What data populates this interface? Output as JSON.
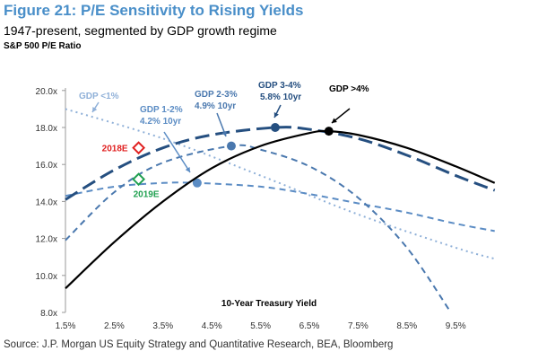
{
  "title": "Figure 21: P/E Sensitivity to Rising Yields",
  "subtitle": "1947-present, segmented by GDP growth regime",
  "source": "Source: J.P. Morgan US Equity Strategy and Quantitative Research, BEA, Bloomberg",
  "chart_data": {
    "type": "line",
    "title": "Figure 21: P/E Sensitivity to Rising Yields",
    "ylabel": "S&P 500 P/E Ratio",
    "xlabel": "10-Year Treasury Yield",
    "xlim": [
      1.5,
      10.3
    ],
    "ylim": [
      8.0,
      20.0
    ],
    "x_ticks": [
      "1.5%",
      "2.5%",
      "3.5%",
      "4.5%",
      "5.5%",
      "6.5%",
      "7.5%",
      "8.5%",
      "9.5%"
    ],
    "y_ticks": [
      "8.0x",
      "10.0x",
      "12.0x",
      "14.0x",
      "16.0x",
      "18.0x",
      "20.0x"
    ],
    "grid": false,
    "series": [
      {
        "name": "GDP <1%",
        "style": "dotted",
        "color": "#8fb0d8",
        "points": [
          [
            1.5,
            19.0
          ],
          [
            3.5,
            17.4
          ],
          [
            5.5,
            15.4
          ],
          [
            7.5,
            13.3
          ],
          [
            9.5,
            11.5
          ],
          [
            10.3,
            10.9
          ]
        ]
      },
      {
        "name": "GDP 1-2%",
        "style": "dashed",
        "color": "#5b8cc4",
        "points": [
          [
            1.5,
            14.3
          ],
          [
            2.5,
            14.8
          ],
          [
            3.5,
            15.0
          ],
          [
            4.2,
            15.0
          ],
          [
            5.5,
            14.8
          ],
          [
            6.5,
            14.4
          ],
          [
            7.5,
            13.9
          ],
          [
            8.5,
            13.4
          ],
          [
            9.5,
            12.8
          ],
          [
            10.3,
            12.4
          ]
        ],
        "marker": {
          "x": 4.2,
          "y": 15.0,
          "label": "4.2% 10yr"
        }
      },
      {
        "name": "GDP 2-3%",
        "style": "dashed",
        "color": "#4a78ae",
        "points": [
          [
            1.5,
            11.9
          ],
          [
            2.5,
            14.5
          ],
          [
            3.5,
            16.1
          ],
          [
            4.9,
            17.0
          ],
          [
            5.5,
            16.8
          ],
          [
            6.5,
            15.9
          ],
          [
            7.5,
            14.2
          ],
          [
            8.5,
            11.5
          ],
          [
            9.4,
            8.0
          ]
        ],
        "marker": {
          "x": 4.9,
          "y": 17.0,
          "label": "4.9% 10yr"
        }
      },
      {
        "name": "GDP 3-4%",
        "style": "longdash",
        "color": "#254f80",
        "points": [
          [
            1.5,
            14.1
          ],
          [
            2.5,
            15.7
          ],
          [
            3.5,
            16.9
          ],
          [
            4.5,
            17.6
          ],
          [
            5.8,
            18.0
          ],
          [
            6.5,
            17.9
          ],
          [
            7.5,
            17.4
          ],
          [
            8.5,
            16.5
          ],
          [
            9.5,
            15.4
          ],
          [
            10.3,
            14.6
          ]
        ],
        "marker": {
          "x": 5.8,
          "y": 18.0,
          "label": "5.8% 10yr"
        }
      },
      {
        "name": "GDP >4%",
        "style": "solid",
        "color": "#000000",
        "points": [
          [
            1.5,
            9.3
          ],
          [
            2.5,
            11.8
          ],
          [
            3.5,
            14.0
          ],
          [
            4.5,
            15.8
          ],
          [
            5.5,
            17.0
          ],
          [
            6.5,
            17.7
          ],
          [
            6.9,
            17.8
          ],
          [
            7.5,
            17.6
          ],
          [
            8.5,
            16.9
          ],
          [
            9.5,
            15.9
          ],
          [
            10.3,
            15.0
          ]
        ],
        "marker": {
          "x": 6.9,
          "y": 17.8
        }
      }
    ],
    "points": [
      {
        "name": "2018E",
        "x": 3.0,
        "y": 16.9,
        "color": "#e02020"
      },
      {
        "name": "2019E",
        "x": 3.0,
        "y": 15.2,
        "color": "#20a050"
      }
    ]
  }
}
